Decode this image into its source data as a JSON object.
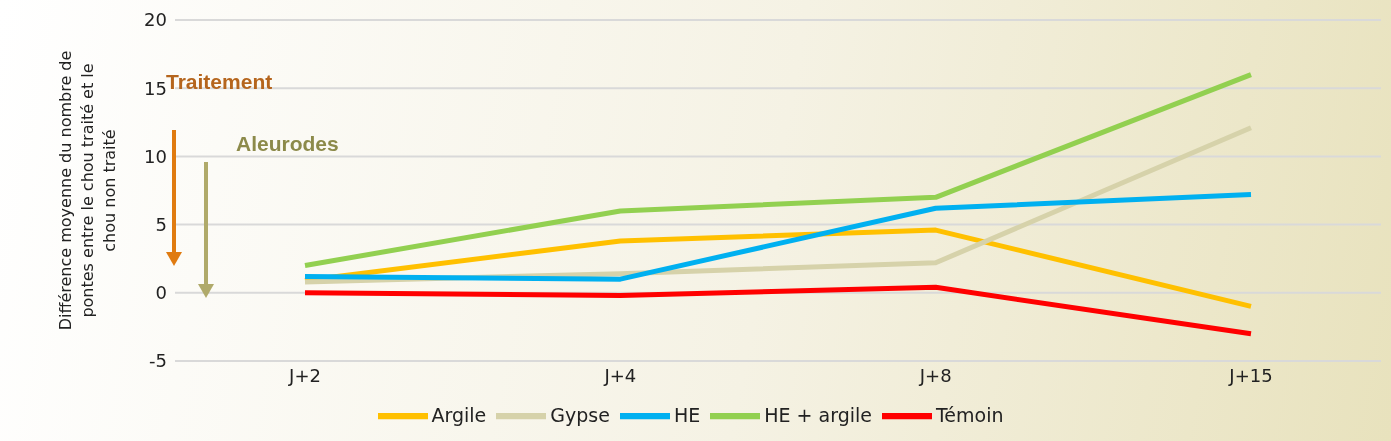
{
  "chart_data": {
    "type": "line",
    "ylabel": "Différence moyenne du nombre de pontes entre le chou traité et le chou non traité",
    "categories": [
      "J+2",
      "J+4",
      "J+8",
      "J+15"
    ],
    "series": [
      {
        "name": "Argile",
        "color": "#ffc000",
        "values": [
          0.9,
          3.8,
          4.6,
          -1.0
        ]
      },
      {
        "name": "Gypse",
        "color": "#d6d2aa",
        "values": [
          0.8,
          1.4,
          2.2,
          12.1
        ]
      },
      {
        "name": "HE",
        "color": "#00b0f0",
        "values": [
          1.2,
          1.0,
          6.2,
          7.2
        ]
      },
      {
        "name": "HE + argile",
        "color": "#92d050",
        "values": [
          2.0,
          6.0,
          7.0,
          16.0
        ]
      },
      {
        "name": "Témoin",
        "color": "#ff0000",
        "values": [
          0,
          -0.2,
          0.4,
          -3.0
        ]
      }
    ],
    "ylim": [
      -5,
      20
    ],
    "yticks": [
      -5,
      0,
      5,
      10,
      15,
      20
    ],
    "grid": "y",
    "legend": "bottom",
    "marker": "none",
    "line_style": "solid",
    "annotations": [
      "Traitement",
      "Aleurodes"
    ]
  }
}
